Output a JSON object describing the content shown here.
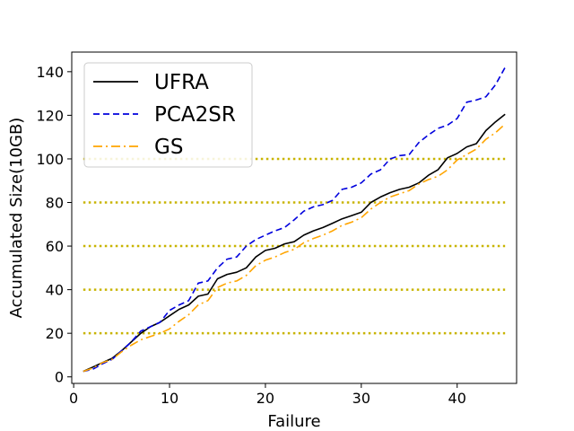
{
  "chart_data": {
    "type": "line",
    "xlabel": "Failure",
    "ylabel": "Accumulated Size(10GB)",
    "xlim": [
      -0.2,
      46.2
    ],
    "ylim": [
      -3,
      149
    ],
    "x_ticks": [
      0,
      10,
      20,
      30,
      40
    ],
    "y_ticks": [
      0,
      20,
      40,
      60,
      80,
      100,
      120,
      140
    ],
    "grid": false,
    "reference_lines": {
      "y": [
        20,
        40,
        60,
        80,
        100
      ],
      "x_range": [
        1,
        45
      ],
      "color": "#c8b400",
      "style": "dotted"
    },
    "legend": {
      "placement": "top-left"
    },
    "x": [
      1,
      2,
      3,
      4,
      5,
      6,
      7,
      8,
      9,
      10,
      11,
      12,
      13,
      14,
      15,
      16,
      17,
      18,
      19,
      20,
      21,
      22,
      23,
      24,
      25,
      26,
      27,
      28,
      29,
      30,
      31,
      32,
      33,
      34,
      35,
      36,
      37,
      38,
      39,
      40,
      41,
      42,
      43,
      44,
      45
    ],
    "series": [
      {
        "name": "UFRA",
        "color": "#000000",
        "dash": "solid",
        "values": [
          2.5,
          4.5,
          6.5,
          8.5,
          12,
          16,
          20,
          23,
          25,
          28,
          31,
          33,
          37,
          38,
          45,
          47,
          48,
          50,
          55,
          58,
          59,
          61,
          62,
          65,
          67,
          68.5,
          70.5,
          72.5,
          74,
          75.5,
          80,
          82.5,
          84.5,
          86,
          87,
          89,
          92.5,
          95,
          100.5,
          102.5,
          105.5,
          107,
          113,
          117,
          120.5
        ]
      },
      {
        "name": "PCA2SR",
        "color": "#0000dd",
        "dash": "dashed",
        "values": [
          2.5,
          3.5,
          6,
          8,
          12,
          16,
          21,
          23,
          25,
          30.5,
          33,
          35,
          43,
          44,
          50,
          54,
          55,
          60,
          63,
          65,
          67,
          68.5,
          72,
          76,
          78,
          79,
          81,
          86,
          87,
          89,
          93,
          95,
          100,
          101.5,
          102,
          107.5,
          111,
          114,
          115.5,
          118.5,
          126,
          127,
          128.5,
          134,
          142
        ]
      },
      {
        "name": "GS",
        "color": "#ffa500",
        "dash": "dashdot",
        "values": [
          2.5,
          4,
          6.5,
          8,
          11.5,
          14.5,
          17,
          18.5,
          20,
          22,
          25.5,
          28.5,
          33,
          35,
          41,
          43,
          44,
          46.5,
          51,
          53.5,
          55,
          57,
          58.5,
          61.5,
          63.5,
          65,
          67,
          69.5,
          71,
          73,
          77,
          80,
          82.5,
          84,
          85.5,
          88.5,
          90.5,
          92,
          95,
          99.5,
          102,
          104.5,
          109,
          112,
          116
        ]
      }
    ]
  }
}
